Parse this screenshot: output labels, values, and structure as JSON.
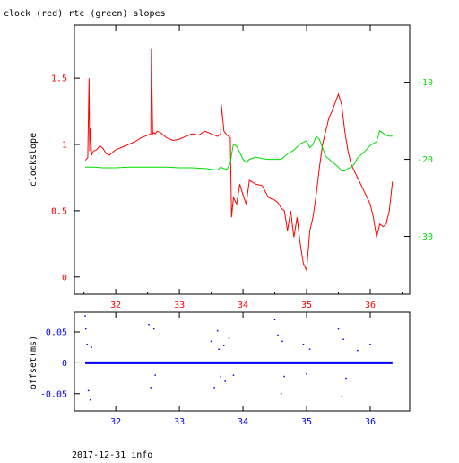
{
  "title": "clock (red) rtc (green) slopes",
  "footer": "2017-12-31 info",
  "colors": {
    "clock": "#ff0000",
    "rtc": "#00dd00",
    "offset": "#0000ff",
    "axis": "#000000"
  },
  "chart_data": [
    {
      "type": "line",
      "title": "clock (red) rtc (green) slopes",
      "xlabel": "",
      "ylabel": "clockslope",
      "xlim": [
        31.35,
        36.62
      ],
      "ylim": [
        -0.13,
        1.9
      ],
      "y2lim": [
        -37.5,
        -2.6
      ],
      "x_ticks": [
        "32",
        "33",
        "34",
        "35",
        "36"
      ],
      "y_ticks": [
        "0",
        "0.5",
        "1",
        "1.5"
      ],
      "y2_ticks": [
        "-10",
        "-20",
        "-30"
      ],
      "grid": false,
      "series": [
        {
          "name": "clock",
          "axis": "left",
          "x": [
            31.52,
            31.56,
            31.58,
            31.59,
            31.6,
            31.62,
            31.63,
            31.65,
            31.7,
            31.75,
            31.8,
            31.85,
            31.9,
            31.95,
            32.0,
            32.1,
            32.2,
            32.3,
            32.4,
            32.5,
            32.55,
            32.56,
            32.58,
            32.6,
            32.62,
            32.65,
            32.7,
            32.8,
            32.9,
            33.0,
            33.1,
            33.2,
            33.3,
            33.4,
            33.5,
            33.6,
            33.65,
            33.66,
            33.7,
            33.75,
            33.8,
            33.82,
            33.85,
            33.9,
            33.95,
            34.0,
            34.05,
            34.1,
            34.2,
            34.3,
            34.4,
            34.5,
            34.55,
            34.6,
            34.65,
            34.7,
            34.75,
            34.8,
            34.85,
            34.9,
            34.95,
            35.0,
            35.05,
            35.1,
            35.15,
            35.2,
            35.25,
            35.3,
            35.35,
            35.4,
            35.5,
            35.55,
            35.6,
            35.65,
            35.7,
            35.75,
            35.8,
            35.85,
            35.9,
            35.95,
            36.0,
            36.05,
            36.1,
            36.15,
            36.2,
            36.25,
            36.3,
            36.35
          ],
          "y": [
            0.88,
            0.9,
            1.5,
            0.95,
            1.12,
            0.92,
            0.93,
            0.95,
            0.96,
            0.99,
            0.97,
            0.93,
            0.92,
            0.94,
            0.96,
            0.98,
            1.0,
            1.02,
            1.05,
            1.07,
            1.08,
            1.72,
            1.08,
            1.09,
            1.08,
            1.1,
            1.09,
            1.05,
            1.03,
            1.04,
            1.06,
            1.08,
            1.07,
            1.1,
            1.08,
            1.06,
            1.08,
            1.3,
            1.1,
            1.07,
            1.05,
            0.45,
            0.6,
            0.55,
            0.7,
            0.62,
            0.55,
            0.73,
            0.7,
            0.69,
            0.6,
            0.58,
            0.56,
            0.52,
            0.5,
            0.35,
            0.5,
            0.3,
            0.45,
            0.25,
            0.1,
            0.05,
            0.35,
            0.45,
            0.62,
            0.82,
            1.0,
            1.1,
            1.2,
            1.25,
            1.38,
            1.3,
            1.1,
            0.95,
            0.85,
            0.8,
            0.75,
            0.7,
            0.65,
            0.6,
            0.55,
            0.45,
            0.3,
            0.4,
            0.38,
            0.4,
            0.5,
            0.72
          ]
        },
        {
          "name": "rtc",
          "axis": "right",
          "x": [
            31.52,
            31.6,
            31.65,
            31.8,
            32.0,
            32.2,
            32.4,
            32.6,
            32.8,
            33.0,
            33.2,
            33.4,
            33.5,
            33.6,
            33.65,
            33.7,
            33.75,
            33.8,
            33.82,
            33.85,
            33.9,
            33.95,
            34.0,
            34.05,
            34.1,
            34.2,
            34.3,
            34.4,
            34.5,
            34.6,
            34.7,
            34.8,
            34.9,
            35.0,
            35.05,
            35.1,
            35.15,
            35.2,
            35.3,
            35.4,
            35.5,
            35.55,
            35.6,
            35.65,
            35.7,
            35.75,
            35.8,
            35.9,
            36.0,
            36.1,
            36.15,
            36.2,
            36.25,
            36.3,
            36.35
          ],
          "y": [
            -21.0,
            -21.0,
            -21.0,
            -21.1,
            -21.1,
            -21.0,
            -21.0,
            -21.0,
            -21.0,
            -21.1,
            -21.1,
            -21.2,
            -21.3,
            -21.4,
            -21.0,
            -21.2,
            -21.3,
            -20.5,
            -19.4,
            -18.0,
            -18.3,
            -19.1,
            -20.0,
            -20.4,
            -20.0,
            -19.7,
            -19.9,
            -20.0,
            -20.0,
            -20.0,
            -19.3,
            -18.8,
            -18.0,
            -17.6,
            -18.5,
            -18.1,
            -17.0,
            -17.4,
            -19.6,
            -20.3,
            -21.0,
            -21.5,
            -21.5,
            -21.2,
            -21.0,
            -20.6,
            -19.8,
            -19.1,
            -18.2,
            -17.7,
            -16.3,
            -16.6,
            -16.9,
            -17.0,
            -17.0
          ]
        }
      ]
    },
    {
      "type": "scatter",
      "xlabel": "",
      "ylabel": "offset(ms)",
      "xlim": [
        31.35,
        36.62
      ],
      "ylim": [
        -0.078,
        0.082
      ],
      "x_ticks": [
        "32",
        "33",
        "34",
        "35",
        "36"
      ],
      "y_ticks": [
        "0.05",
        "0",
        "-0.05"
      ],
      "grid": false,
      "series": [
        {
          "name": "offset",
          "x": [
            31.52,
            31.53,
            31.55,
            31.57,
            31.6,
            31.62,
            32.52,
            32.55,
            32.6,
            32.62,
            33.5,
            33.55,
            33.6,
            33.62,
            33.65,
            33.7,
            33.72,
            33.78,
            33.85,
            34.5,
            34.55,
            34.6,
            34.62,
            34.65,
            34.95,
            35.0,
            35.05,
            35.5,
            35.55,
            35.58,
            35.62,
            35.8,
            36.0
          ],
          "y": [
            0.076,
            0.055,
            0.03,
            -0.045,
            -0.06,
            0.025,
            0.062,
            -0.04,
            0.055,
            -0.02,
            0.035,
            -0.04,
            0.052,
            0.022,
            -0.022,
            0.028,
            -0.03,
            0.04,
            -0.02,
            0.07,
            0.045,
            -0.05,
            0.035,
            -0.022,
            0.03,
            -0.018,
            0.022,
            0.055,
            -0.055,
            0.038,
            -0.025,
            0.02,
            0.03
          ]
        }
      ]
    }
  ]
}
